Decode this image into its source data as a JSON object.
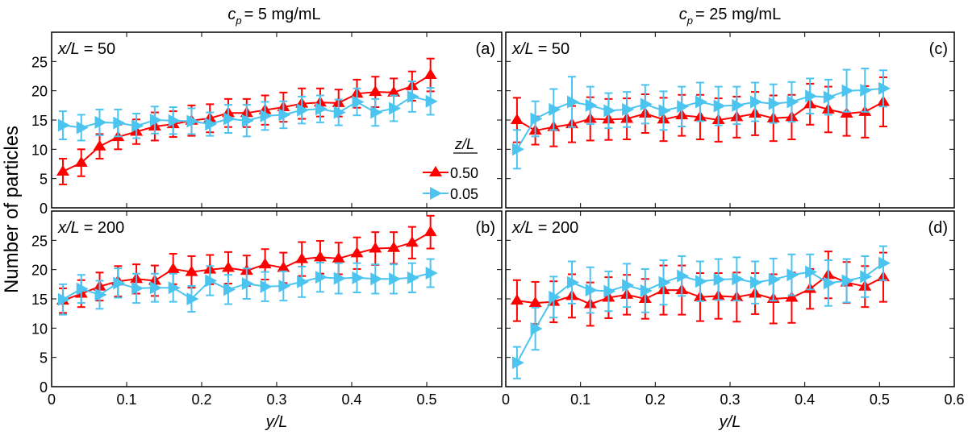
{
  "chart_data": {
    "type": "line",
    "figure_ylabel": "Number of particles",
    "xlabel": "y/L",
    "columns": [
      {
        "title_var": "c",
        "title_sub": "p",
        "title_rest": "= 5 mg/mL"
      },
      {
        "title_var": "c",
        "title_sub": "p",
        "title_rest": "= 25 mg/mL"
      }
    ],
    "legend": {
      "title": "z/L",
      "placement": "inside-right of panel (a)",
      "entries": [
        {
          "label": "0.50",
          "color": "#ff0000",
          "marker": "triangle-up"
        },
        {
          "label": "0.05",
          "color": "#4cc4f0",
          "marker": "triangle-right"
        }
      ]
    },
    "x_shared": [
      0.015,
      0.0395,
      0.064,
      0.0885,
      0.113,
      0.1375,
      0.162,
      0.1865,
      0.211,
      0.2355,
      0.26,
      0.2845,
      0.309,
      0.3335,
      0.358,
      0.3825,
      0.407,
      0.4315,
      0.456,
      0.4805,
      0.505
    ],
    "xlim": [
      0,
      0.6
    ],
    "xticks": [
      "0",
      "0.1",
      "0.2",
      "0.3",
      "0.4",
      "0.5"
    ],
    "xticks_right": [
      "0",
      "0.1",
      "0.2",
      "0.3",
      "0.4",
      "0.5",
      "0.6"
    ],
    "ylim": [
      0,
      30
    ],
    "yticks": [
      "0",
      "5",
      "10",
      "15",
      "20",
      "25"
    ],
    "panels": [
      {
        "id": "a",
        "tag": "(a)",
        "label_var": "x/L",
        "label_val": "= 50",
        "col": 0,
        "row": 0,
        "series": [
          {
            "name": "0.50",
            "values": [
              6.2,
              7.7,
              10.5,
              12.1,
              13.0,
              13.9,
              14.3,
              14.9,
              15.3,
              16.2,
              16.2,
              16.7,
              17.2,
              17.8,
              18.0,
              17.9,
              19.5,
              19.8,
              19.7,
              20.8,
              22.7
            ],
            "errors": [
              2.2,
              2.3,
              2.1,
              2.1,
              2.1,
              2.4,
              2.2,
              2.6,
              2.4,
              2.4,
              2.4,
              2.5,
              2.5,
              2.6,
              2.4,
              2.3,
              2.4,
              2.6,
              2.4,
              2.5,
              2.8
            ]
          },
          {
            "name": "0.05",
            "values": [
              14.1,
              13.7,
              14.6,
              14.5,
              14.0,
              15.0,
              14.9,
              14.8,
              14.3,
              15.2,
              14.9,
              15.7,
              15.9,
              16.7,
              16.9,
              16.3,
              18.1,
              16.3,
              17.0,
              19.0,
              18.2
            ],
            "errors": [
              2.4,
              2.2,
              2.2,
              2.3,
              2.1,
              2.3,
              2.3,
              2.2,
              2.0,
              2.4,
              2.7,
              2.4,
              2.3,
              2.3,
              2.3,
              2.2,
              2.3,
              2.3,
              2.2,
              2.6,
              2.3
            ]
          }
        ]
      },
      {
        "id": "b",
        "tag": "(b)",
        "label_var": "x/L",
        "label_val": "= 200",
        "col": 0,
        "row": 1,
        "series": [
          {
            "name": "0.50",
            "values": [
              14.7,
              15.9,
              17.1,
              18.0,
              18.4,
              18.1,
              20.1,
              19.6,
              20.0,
              20.3,
              19.8,
              20.9,
              20.3,
              21.8,
              22.1,
              21.9,
              22.8,
              23.6,
              23.7,
              24.6,
              26.4
            ],
            "errors": [
              2.1,
              2.3,
              2.4,
              2.6,
              2.5,
              2.6,
              2.6,
              2.7,
              2.5,
              2.7,
              2.6,
              2.6,
              2.6,
              2.9,
              2.8,
              2.7,
              2.7,
              2.8,
              2.7,
              2.7,
              2.8
            ]
          },
          {
            "name": "0.05",
            "values": [
              14.9,
              16.7,
              15.7,
              17.7,
              16.8,
              16.9,
              16.9,
              15.0,
              18.1,
              16.6,
              17.6,
              17.1,
              17.2,
              17.9,
              18.7,
              18.5,
              18.6,
              18.4,
              18.4,
              18.6,
              19.4
            ],
            "errors": [
              2.6,
              2.4,
              2.4,
              2.5,
              2.5,
              2.4,
              2.4,
              2.2,
              2.5,
              2.5,
              2.6,
              2.5,
              2.5,
              2.6,
              2.5,
              2.6,
              2.5,
              2.5,
              2.5,
              2.5,
              2.4
            ]
          }
        ]
      },
      {
        "id": "c",
        "tag": "(c)",
        "label_var": "x/L",
        "label_val": "= 50",
        "col": 1,
        "row": 0,
        "series": [
          {
            "name": "0.50",
            "values": [
              15.0,
              13.2,
              13.8,
              14.3,
              15.2,
              15.1,
              15.2,
              16.1,
              15.1,
              15.8,
              15.5,
              15.0,
              15.5,
              16.1,
              15.3,
              15.5,
              17.7,
              16.8,
              16.1,
              16.4,
              18.1
            ],
            "errors": [
              3.8,
              2.4,
              3.3,
              3.1,
              3.7,
              3.5,
              3.5,
              3.3,
              3.7,
              3.5,
              3.8,
              3.7,
              3.5,
              3.7,
              3.9,
              3.8,
              3.5,
              3.9,
              3.8,
              4.4,
              4.2
            ]
          },
          {
            "name": "0.05",
            "values": [
              10.0,
              15.2,
              16.8,
              18.1,
              17.5,
              16.6,
              16.8,
              17.7,
              16.6,
              17.3,
              18.1,
              17.4,
              17.5,
              18.1,
              17.8,
              18.1,
              19.1,
              18.9,
              20.0,
              20.1,
              20.4
            ],
            "errors": [
              3.3,
              3.0,
              3.5,
              4.3,
              3.2,
              3.0,
              3.0,
              3.3,
              3.3,
              3.4,
              3.3,
              3.3,
              3.2,
              3.3,
              3.3,
              3.4,
              3.0,
              3.0,
              3.6,
              3.7,
              3.1
            ]
          }
        ]
      },
      {
        "id": "d",
        "tag": "(d)",
        "label_var": "x/L",
        "label_val": "= 200",
        "col": 1,
        "row": 1,
        "series": [
          {
            "name": "0.50",
            "values": [
              14.7,
              14.3,
              14.5,
              15.5,
              14.1,
              15.2,
              15.7,
              15.0,
              16.5,
              16.5,
              15.3,
              15.5,
              15.3,
              15.9,
              15.0,
              15.2,
              16.7,
              19.1,
              17.8,
              17.1,
              18.7
            ],
            "errors": [
              3.5,
              3.6,
              3.5,
              3.7,
              3.7,
              3.5,
              3.4,
              3.4,
              4.2,
              4.2,
              4.1,
              3.9,
              4.2,
              3.5,
              4.2,
              4.3,
              3.4,
              4.0,
              3.5,
              3.5,
              4.2
            ]
          },
          {
            "name": "0.05",
            "values": [
              4.1,
              9.9,
              15.3,
              17.8,
              16.5,
              16.3,
              17.3,
              16.4,
              17.8,
              18.9,
              18.0,
              18.3,
              18.4,
              17.8,
              18.3,
              19.1,
              19.6,
              17.7,
              18.1,
              18.8,
              21.1
            ],
            "errors": [
              2.7,
              3.6,
              3.5,
              3.6,
              3.9,
              3.4,
              3.7,
              3.7,
              3.8,
              3.4,
              3.4,
              3.5,
              3.7,
              3.6,
              3.6,
              3.5,
              3.0,
              3.9,
              3.7,
              3.5,
              2.9
            ]
          }
        ]
      }
    ]
  }
}
